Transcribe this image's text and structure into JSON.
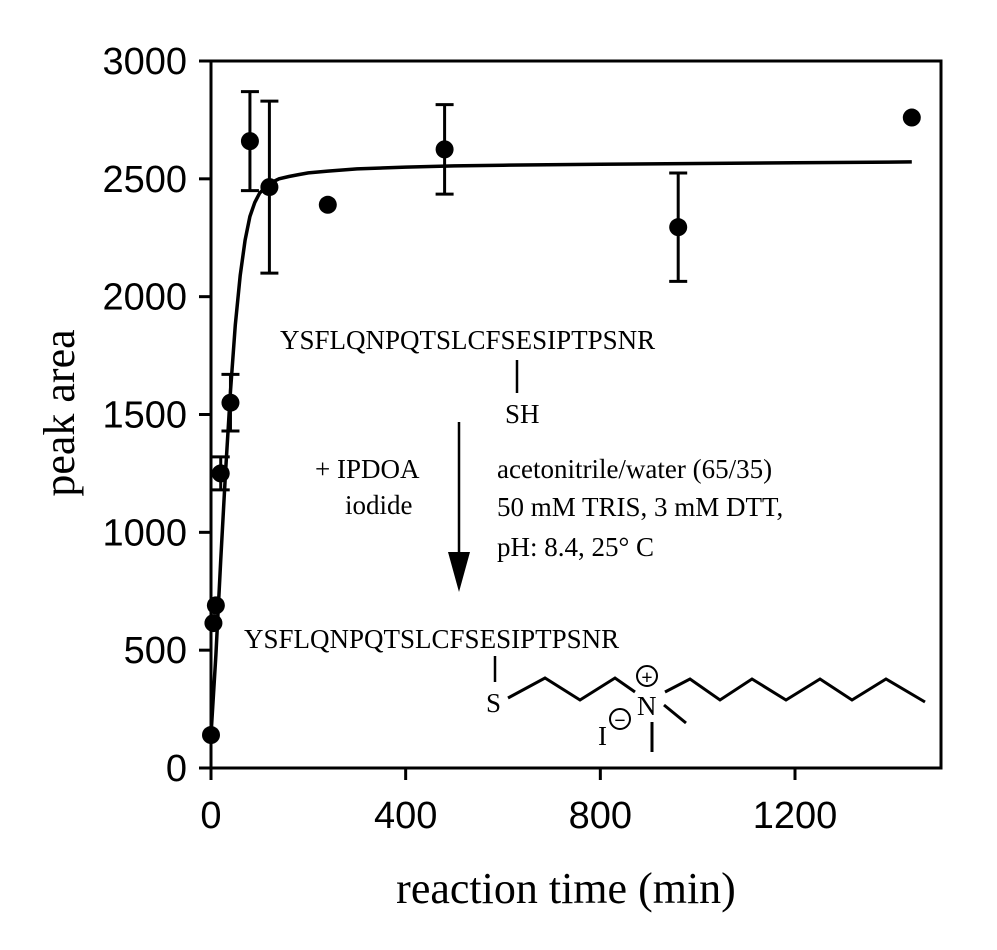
{
  "chart_data": {
    "type": "scatter",
    "title": "",
    "xlabel": "reaction time (min)",
    "ylabel": "peak area",
    "xlim": [
      0,
      1500
    ],
    "ylim": [
      0,
      3000
    ],
    "x_ticks": [
      0,
      400,
      800,
      1200
    ],
    "y_ticks": [
      0,
      500,
      1000,
      1500,
      2000,
      2500,
      3000
    ],
    "grid": false,
    "legend": "none",
    "series": [
      {
        "kind": "scatter-with-error-bars",
        "points": [
          {
            "x": 0,
            "y": 140,
            "err": 0
          },
          {
            "x": 5,
            "y": 615,
            "err": 0
          },
          {
            "x": 10,
            "y": 690,
            "err": 0
          },
          {
            "x": 20,
            "y": 1250,
            "err": 70
          },
          {
            "x": 40,
            "y": 1550,
            "err": 120
          },
          {
            "x": 80,
            "y": 2660,
            "err": 210
          },
          {
            "x": 120,
            "y": 2465,
            "err": 365
          },
          {
            "x": 240,
            "y": 2390,
            "err": 0
          },
          {
            "x": 480,
            "y": 2625,
            "err": 190
          },
          {
            "x": 960,
            "y": 2295,
            "err": 230
          },
          {
            "x": 1440,
            "y": 2760,
            "err": 0
          }
        ]
      },
      {
        "kind": "fit-line",
        "x": [
          0,
          10,
          20,
          30,
          40,
          50,
          60,
          70,
          80,
          90,
          100,
          120,
          140,
          160,
          180,
          200,
          240,
          300,
          400,
          500,
          600,
          800,
          1000,
          1200,
          1440
        ],
        "y": [
          140,
          480,
          880,
          1260,
          1600,
          1880,
          2090,
          2240,
          2340,
          2400,
          2440,
          2480,
          2500,
          2510,
          2518,
          2525,
          2533,
          2542,
          2550,
          2555,
          2558,
          2562,
          2565,
          2568,
          2572
        ]
      }
    ],
    "annotations": {
      "peptide_top": "YSFLQNPQTSLCFSESIPTPSNR",
      "thiol_label": "SH",
      "reagent_line1": "+ IPDOA",
      "reagent_line2": "iodide",
      "conditions_line1": "acetonitrile/water (65/35)",
      "conditions_line2": "50 mM TRIS, 3 mM DTT,",
      "conditions_line3": "pH: 8.4, 25° C",
      "peptide_bottom": "YSFLQNPQTSLCFSESIPTPSNR",
      "sulfur_label": "S",
      "nitrogen_label": "N",
      "plus_charge": "+",
      "counter_ion": "I",
      "minus_charge": "−"
    }
  }
}
